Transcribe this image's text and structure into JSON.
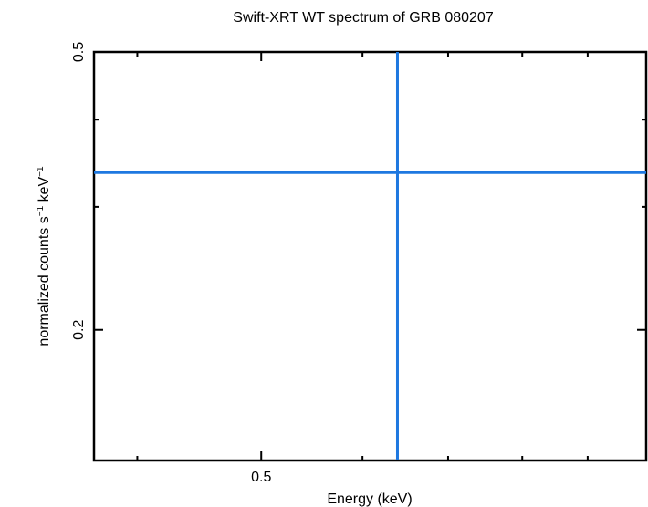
{
  "chart_data": {
    "type": "scatter",
    "title": "Swift-XRT WT spectrum of GRB 080207",
    "xlabel": "Energy (keV)",
    "ylabel_main": "normalized counts s",
    "ylabel_sup1": "−1",
    "ylabel_mid": " keV",
    "ylabel_sup2": "−1",
    "xscale": "log",
    "yscale": "log",
    "xlim": [
      0.37,
      1.0
    ],
    "ylim": [
      0.13,
      0.5
    ],
    "x_ticks": [
      {
        "value": 0.5,
        "label": "0.5"
      }
    ],
    "y_ticks": [
      {
        "value": 0.2,
        "label": "0.2"
      },
      {
        "value": 0.5,
        "label": "0.5"
      }
    ],
    "x_minor_ticks": [
      0.4,
      0.6,
      0.7,
      0.8,
      0.9
    ],
    "y_minor_ticks": [
      0.3,
      0.4
    ],
    "grid": false,
    "series": [
      {
        "color": "#1e78e0",
        "points": [
          {
            "x": 0.639,
            "y": 0.336,
            "xerr": [
              0.37,
              1.0
            ],
            "yerr": [
              0.13,
              0.5
            ]
          }
        ]
      }
    ]
  }
}
